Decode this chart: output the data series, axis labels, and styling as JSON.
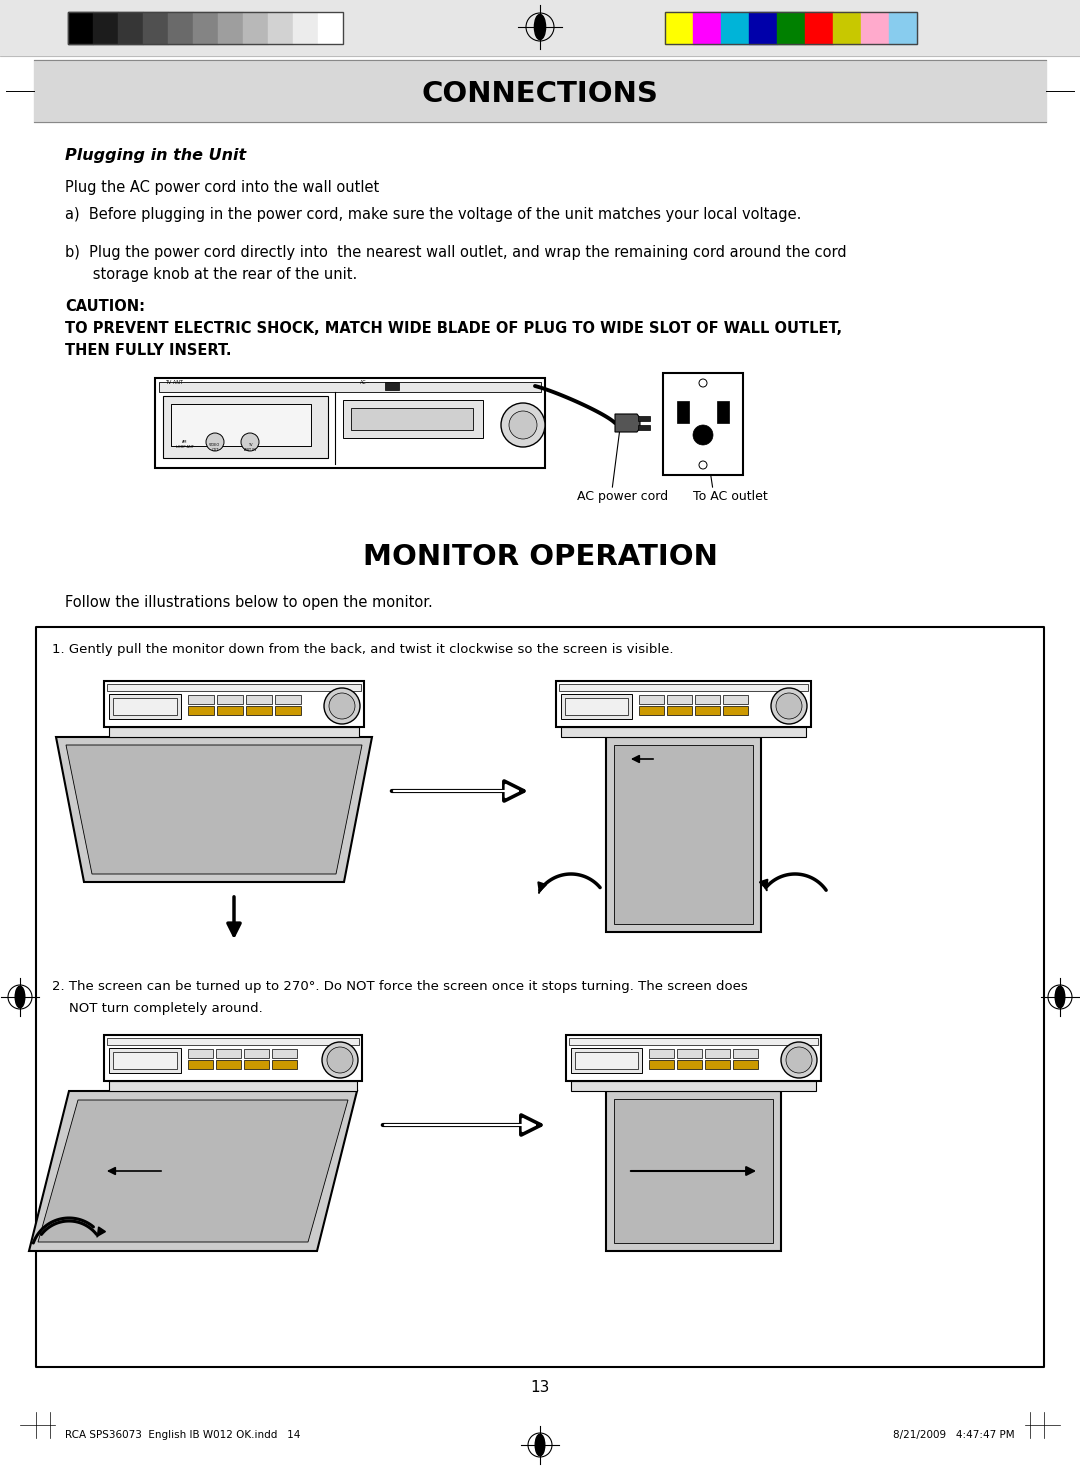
{
  "page_bg": "#ffffff",
  "header_bg": "#d8d8d8",
  "header_text": "CONNECTIONS",
  "header_text_color": "#000000",
  "section1_title": "Plugging in the Unit",
  "section1_intro": "Plug the AC power cord into the wall outlet",
  "section1_a": "a)  Before plugging in the power cord, make sure the voltage of the unit matches your local voltage.",
  "section1_b_line1": "b)  Plug the power cord directly into  the nearest wall outlet, and wrap the remaining cord around the cord",
  "section1_b_line2": "      storage knob at the rear of the unit.",
  "caution_label": "CAUTION:",
  "caution_text_line1": "TO PREVENT ELECTRIC SHOCK, MATCH WIDE BLADE OF PLUG TO WIDE SLOT OF WALL OUTLET,",
  "caution_text_line2": "THEN FULLY INSERT.",
  "label_ac_cord": "AC power cord",
  "label_ac_outlet": "To AC outlet",
  "section2_title": "MONITOR OPERATION",
  "section2_intro": "Follow the illustrations below to open the monitor.",
  "box_text1": "1. Gently pull the monitor down from the back, and twist it clockwise so the screen is visible.",
  "box_text2_line1": "2. The screen can be turned up to 270°. Do NOT force the screen once it stops turning. The screen does",
  "box_text2_line2": "    NOT turn completely around.",
  "page_number": "13",
  "footer_left": "RCA SPS36073  English IB W012 OK.indd   14",
  "footer_right": "8/21/2009   4:47:47 PM",
  "color_bars_left": [
    "#000000",
    "#1c1c1c",
    "#363636",
    "#505050",
    "#6a6a6a",
    "#848484",
    "#9e9e9e",
    "#b8b8b8",
    "#d2d2d2",
    "#ececec",
    "#ffffff"
  ],
  "color_bars_right": [
    "#ffff00",
    "#ff00ff",
    "#00b4d8",
    "#0000aa",
    "#008000",
    "#ff0000",
    "#c8c800",
    "#ffaacc",
    "#88ccee"
  ],
  "bar_outline": "#555555"
}
